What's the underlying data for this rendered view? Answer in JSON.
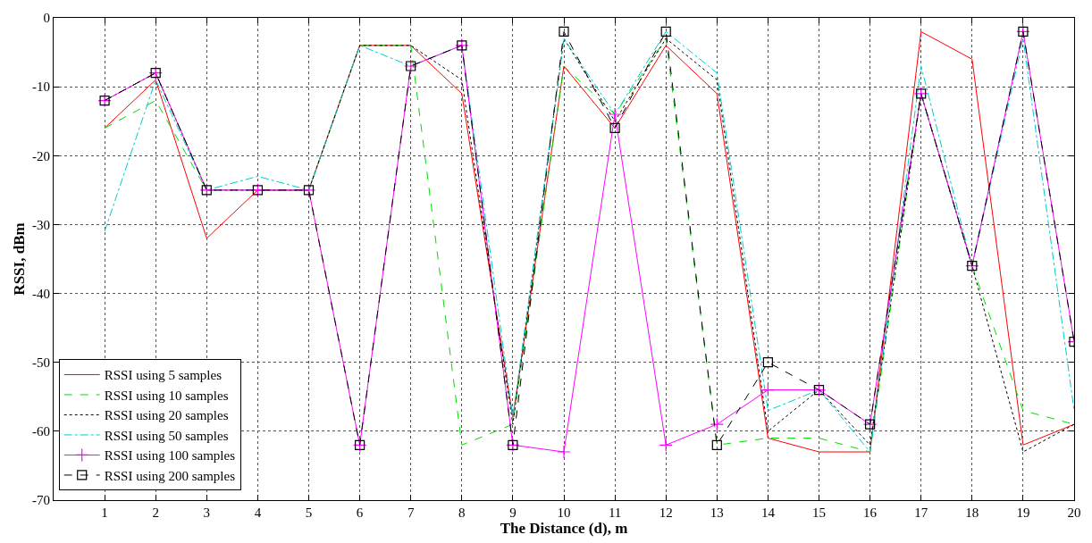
{
  "chart_data": {
    "type": "line",
    "xlabel": "The Distance (d), m",
    "ylabel": "RSSI, dBm",
    "x": [
      1,
      2,
      3,
      4,
      5,
      6,
      7,
      8,
      9,
      10,
      11,
      12,
      13,
      14,
      15,
      16,
      17,
      18,
      19,
      20
    ],
    "xlim": [
      0,
      20
    ],
    "xticks": [
      1,
      2,
      3,
      4,
      5,
      6,
      7,
      8,
      9,
      10,
      11,
      12,
      13,
      14,
      15,
      16,
      17,
      18,
      19,
      20
    ],
    "ylim": [
      -70,
      0
    ],
    "yticks": [
      -70,
      -60,
      -50,
      -40,
      -30,
      -20,
      -10,
      0
    ],
    "grid": true,
    "legend": "bottom left",
    "series": [
      {
        "name": "RSSI using 5 samples",
        "color": "#ff0000",
        "line_style": "solid",
        "marker": "none",
        "values": [
          -16,
          -9,
          -32,
          -25,
          -25,
          -4,
          -4,
          -11,
          -58,
          -7,
          -16,
          -4,
          -11,
          -61,
          -63,
          -63,
          -2,
          -6,
          -62,
          -59
        ]
      },
      {
        "name": "RSSI using 10 samples",
        "color": "#00dd00",
        "line_style": "dashed",
        "marker": "none",
        "values": [
          -16,
          -12,
          -25,
          -25,
          -25,
          -4,
          -4,
          -62,
          -59,
          -7,
          -14,
          -3,
          -62,
          -61,
          -61,
          -63,
          -11,
          -36,
          -57,
          -59
        ]
      },
      {
        "name": "RSSI using 20 samples",
        "color": "#000000",
        "line_style": "dotted",
        "marker": "none",
        "values": [
          -12,
          -8,
          -25,
          -25,
          -25,
          -4,
          -4,
          -9,
          -59,
          -3,
          -15,
          -3,
          -9,
          -60,
          -54,
          -62,
          -11,
          -36,
          -63,
          -59
        ]
      },
      {
        "name": "RSSI using 50 samples",
        "color": "#00cccc",
        "line_style": "dashdot",
        "marker": "none",
        "values": [
          -31,
          -9,
          -25,
          -23,
          -25,
          -4,
          -7,
          -4,
          -58,
          -3,
          -14,
          -2,
          -8,
          -57,
          -54,
          -63,
          -7,
          -36,
          -3,
          -57
        ]
      },
      {
        "name": "RSSI using 100 samples",
        "color": "#ff00ff",
        "line_style": "solid",
        "marker": "cross",
        "values": [
          -12,
          -8,
          -25,
          -25,
          -25,
          -62,
          -7,
          -4,
          -62,
          -63,
          -14,
          -62,
          -59,
          -54,
          -54,
          -59,
          -11,
          -36,
          -2,
          -47
        ]
      },
      {
        "name": "RSSI using 200 samples",
        "color": "#000000",
        "line_style": "dashed",
        "marker": "square",
        "values": [
          -12,
          -8,
          -25,
          -25,
          -25,
          -62,
          -7,
          -4,
          -62,
          -2,
          -16,
          -2,
          -62,
          -50,
          -54,
          -59,
          -11,
          -36,
          -2,
          -47
        ]
      }
    ]
  }
}
